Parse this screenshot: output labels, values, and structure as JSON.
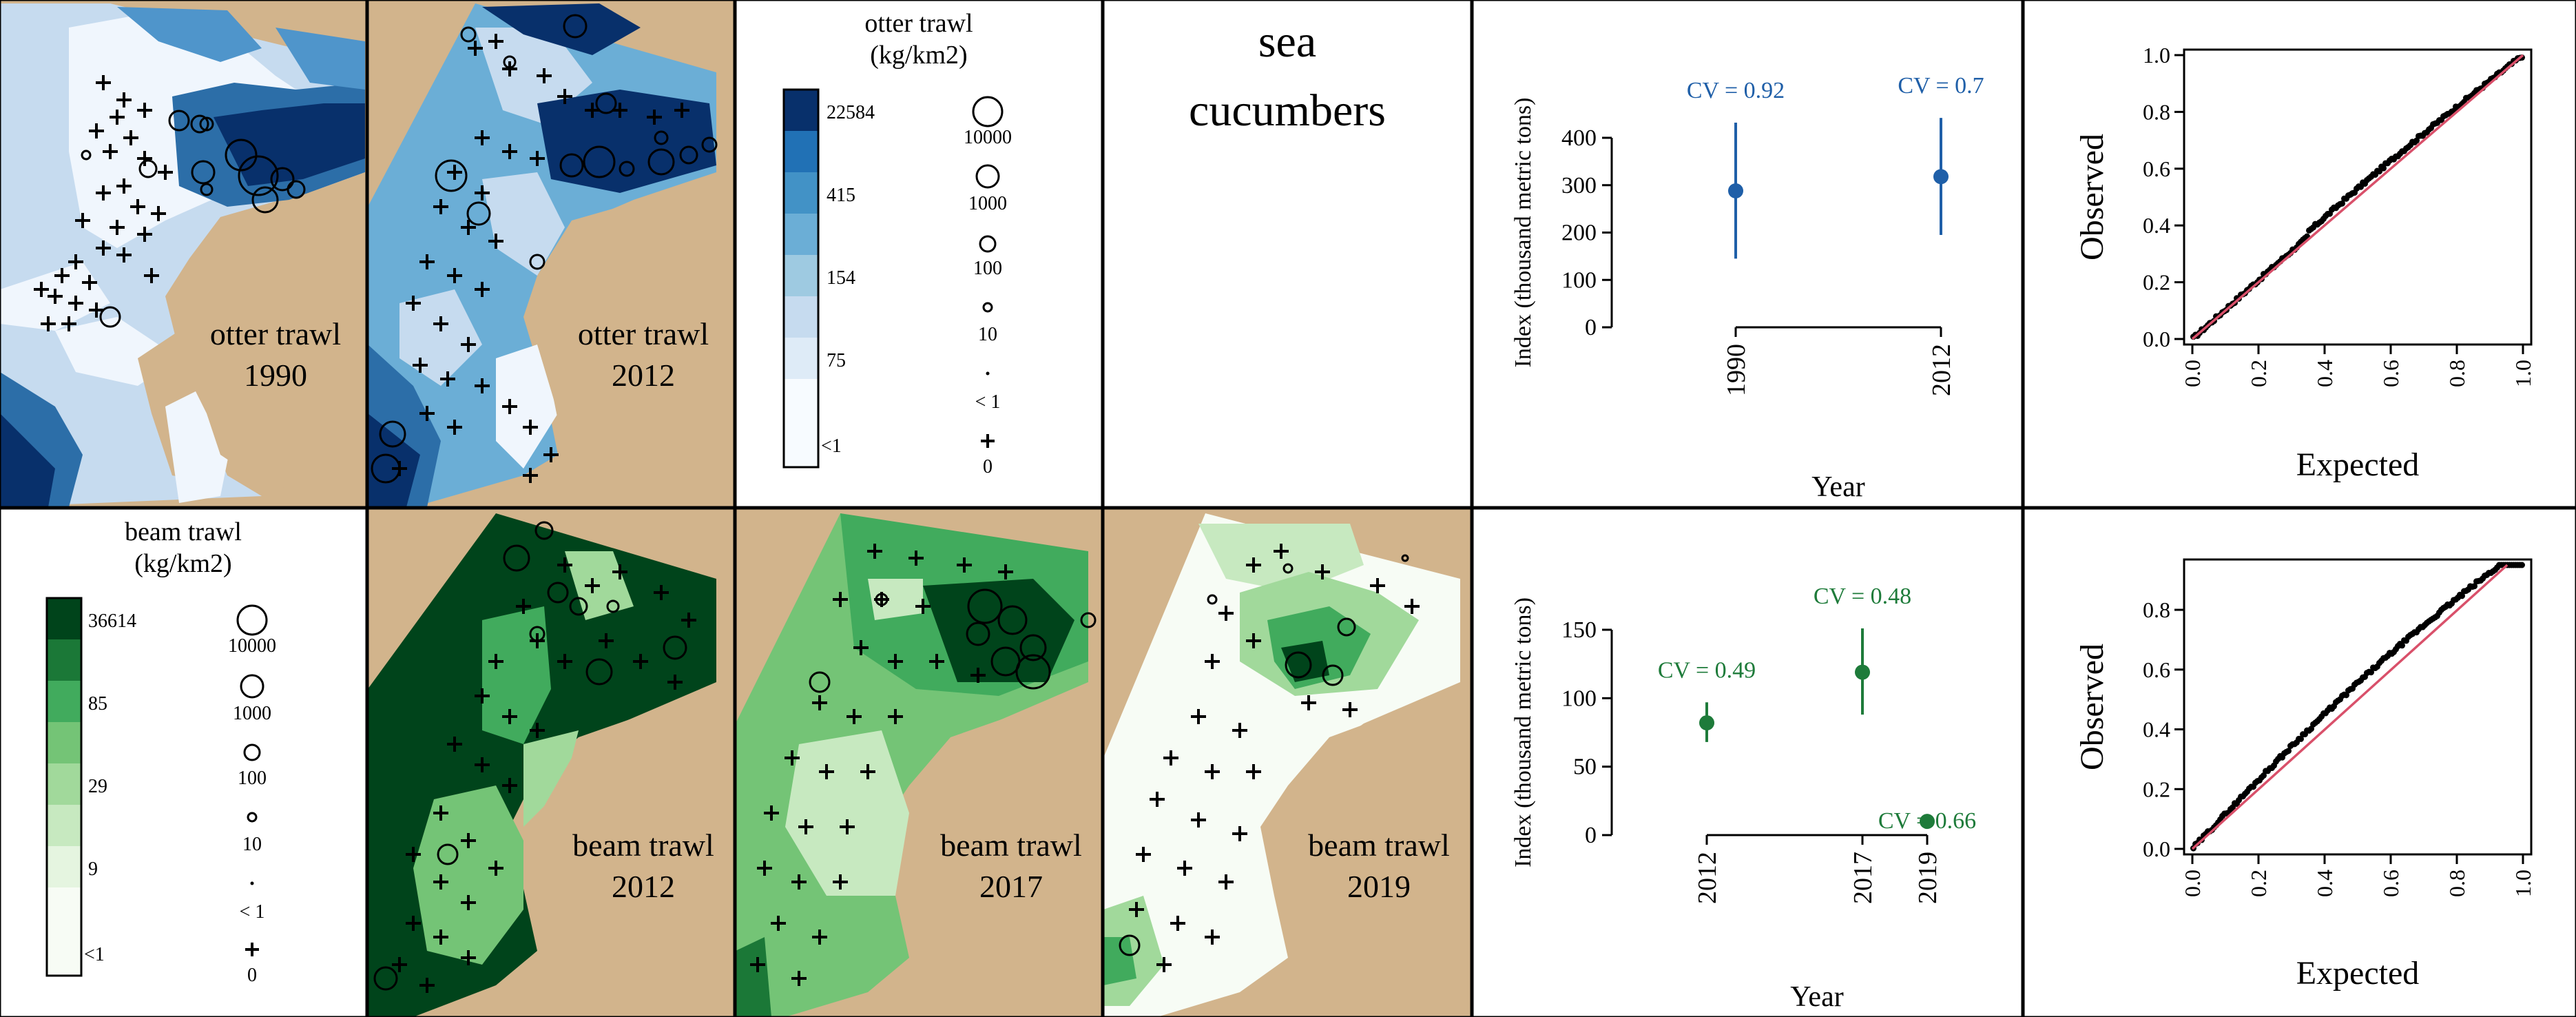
{
  "figure": {
    "species_label": "sea cucumbers",
    "otter_legend": {
      "title_line1": "otter trawl",
      "title_line2": "(kg/km2)",
      "color_labels": [
        "22584",
        "415",
        "154",
        "75",
        "<1"
      ],
      "bubble_labels": [
        "10000",
        "1000",
        "100",
        "10",
        "< 1",
        "0"
      ]
    },
    "beam_legend": {
      "title_line1": "beam trawl",
      "title_line2": "(kg/km2)",
      "color_labels": [
        "36614",
        "85",
        "29",
        "9",
        "<1"
      ],
      "bubble_labels": [
        "10000",
        "1000",
        "100",
        "10",
        "< 1",
        "0"
      ]
    },
    "maps": [
      {
        "gear": "otter trawl",
        "year": "1990"
      },
      {
        "gear": "otter trawl",
        "year": "2012"
      },
      {
        "gear": "beam trawl",
        "year": "2012"
      },
      {
        "gear": "beam trawl",
        "year": "2017"
      },
      {
        "gear": "beam trawl",
        "year": "2019"
      }
    ]
  },
  "colors": {
    "otter_blue": "#1f5fa8",
    "beam_green": "#1e7b3a",
    "qq_line": "#d9506a",
    "land": "#d2b48c"
  },
  "chart_data": [
    {
      "type": "scatter",
      "subtype": "errorbar",
      "ylabel": "Index (thousand metric tons)",
      "xlabel": "Year",
      "categories": [
        "1990",
        "2012"
      ],
      "values": [
        288,
        318
      ],
      "lower": [
        145,
        195
      ],
      "upper": [
        432,
        442
      ],
      "cv_labels": [
        "CV = 0.92",
        "CV = 0.7"
      ],
      "yticks": [
        "0",
        "100",
        "200",
        "300",
        "400"
      ],
      "ylim": [
        0,
        400
      ]
    },
    {
      "type": "scatter",
      "subtype": "errorbar",
      "ylabel": "Index (thousand metric tons)",
      "xlabel": "Year",
      "categories": [
        "2012",
        "2017",
        "2019"
      ],
      "values": [
        82,
        119,
        10
      ],
      "lower": [
        68,
        88,
        9
      ],
      "upper": [
        97,
        151,
        12
      ],
      "cv_labels": [
        "CV = 0.49",
        "CV = 0.48",
        "CV = 0.66"
      ],
      "yticks": [
        "0",
        "50",
        "100",
        "150"
      ],
      "ylim": [
        0,
        150
      ]
    },
    {
      "type": "scatter",
      "subtype": "qqplot",
      "xlabel": "Expected",
      "ylabel": "Observed",
      "xticks": [
        "0.0",
        "0.2",
        "0.4",
        "0.6",
        "0.8",
        "1.0"
      ],
      "yticks": [
        "0.0",
        "0.2",
        "0.4",
        "0.6",
        "0.8",
        "1.0"
      ],
      "xlim": [
        0,
        1
      ],
      "ylim": [
        0,
        1
      ]
    },
    {
      "type": "scatter",
      "subtype": "qqplot",
      "xlabel": "Expected",
      "ylabel": "Observed",
      "xticks": [
        "0.0",
        "0.2",
        "0.4",
        "0.6",
        "0.8",
        "1.0"
      ],
      "yticks": [
        "0.0",
        "0.2",
        "0.4",
        "0.6",
        "0.8"
      ],
      "xlim": [
        0,
        1
      ],
      "ylim": [
        0,
        0.95
      ]
    }
  ]
}
